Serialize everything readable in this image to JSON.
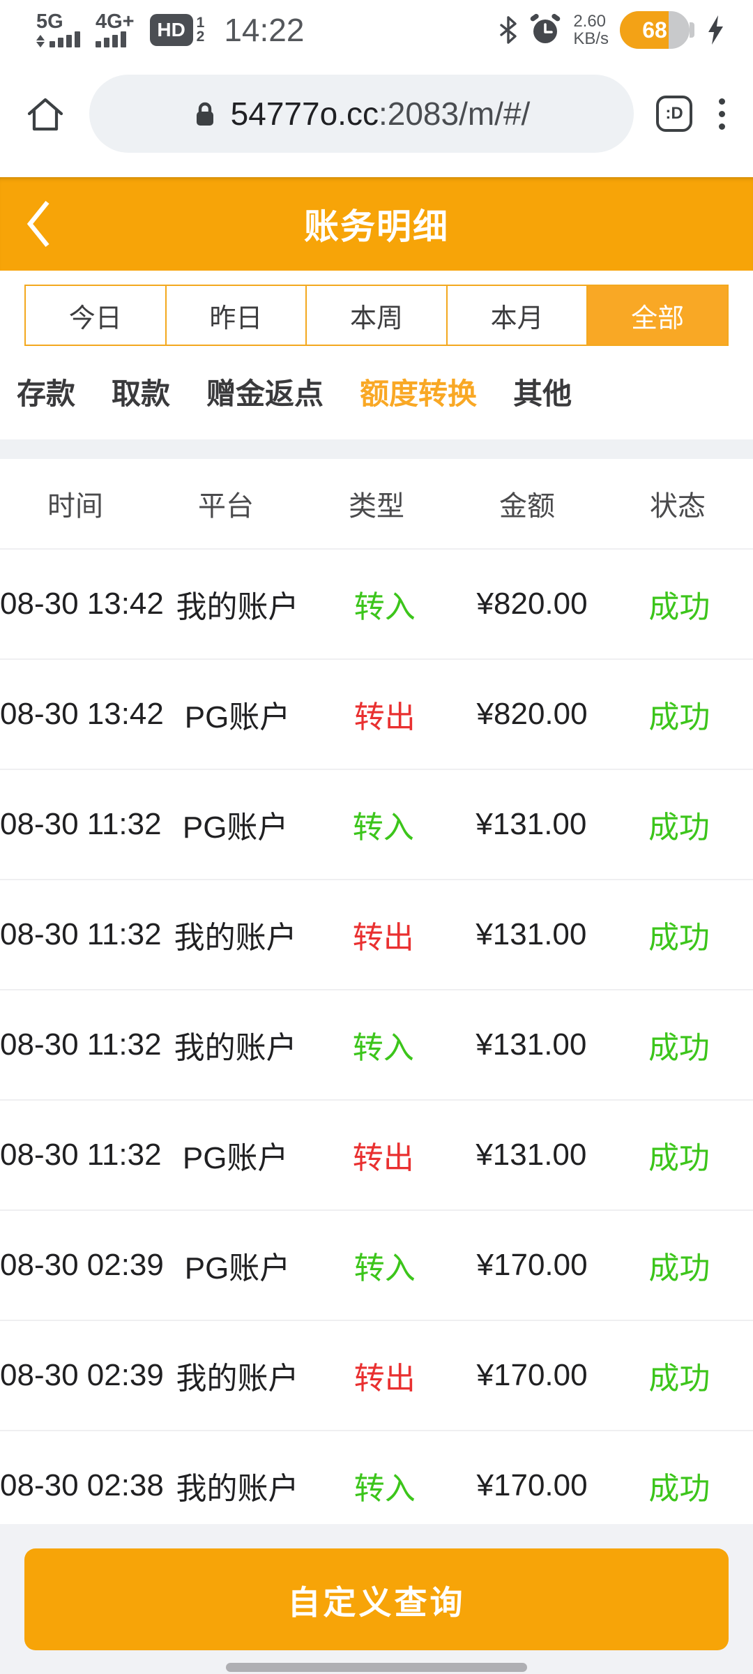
{
  "status_bar": {
    "network1": "5G",
    "network2": "4G+",
    "hd_label": "HD",
    "sim1": "1",
    "sim2": "2",
    "time": "14:22",
    "net_speed_value": "2.60",
    "net_speed_unit": "KB/s",
    "battery_level": "68"
  },
  "browser": {
    "url_host": "54777o.cc",
    "url_rest": ":2083/m/#/",
    "tab_count": ":D"
  },
  "header": {
    "title": "账务明细"
  },
  "range_tabs": {
    "items": [
      {
        "label": "今日",
        "selected": false
      },
      {
        "label": "昨日",
        "selected": false
      },
      {
        "label": "本周",
        "selected": false
      },
      {
        "label": "本月",
        "selected": false
      },
      {
        "label": "全部",
        "selected": true
      }
    ]
  },
  "type_tabs": {
    "items": [
      {
        "label": "存款",
        "selected": false
      },
      {
        "label": "取款",
        "selected": false
      },
      {
        "label": "赠金返点",
        "selected": false
      },
      {
        "label": "额度转换",
        "selected": true
      },
      {
        "label": "其他",
        "selected": false
      }
    ]
  },
  "table": {
    "columns": [
      "时间",
      "平台",
      "类型",
      "金额",
      "状态"
    ],
    "rows": [
      {
        "time": "08-30 13:42",
        "platform": "我的账户",
        "type": "转入",
        "type_color": "green",
        "amount": "¥820.00",
        "status": "成功"
      },
      {
        "time": "08-30 13:42",
        "platform": "PG账户",
        "type": "转出",
        "type_color": "red",
        "amount": "¥820.00",
        "status": "成功"
      },
      {
        "time": "08-30 11:32",
        "platform": "PG账户",
        "type": "转入",
        "type_color": "green",
        "amount": "¥131.00",
        "status": "成功"
      },
      {
        "time": "08-30 11:32",
        "platform": "我的账户",
        "type": "转出",
        "type_color": "red",
        "amount": "¥131.00",
        "status": "成功"
      },
      {
        "time": "08-30 11:32",
        "platform": "我的账户",
        "type": "转入",
        "type_color": "green",
        "amount": "¥131.00",
        "status": "成功"
      },
      {
        "time": "08-30 11:32",
        "platform": "PG账户",
        "type": "转出",
        "type_color": "red",
        "amount": "¥131.00",
        "status": "成功"
      },
      {
        "time": "08-30 02:39",
        "platform": "PG账户",
        "type": "转入",
        "type_color": "green",
        "amount": "¥170.00",
        "status": "成功"
      },
      {
        "time": "08-30 02:39",
        "platform": "我的账户",
        "type": "转出",
        "type_color": "red",
        "amount": "¥170.00",
        "status": "成功"
      },
      {
        "time": "08-30 02:38",
        "platform": "我的账户",
        "type": "转入",
        "type_color": "green",
        "amount": "¥170.00",
        "status": "成功"
      }
    ]
  },
  "footer": {
    "query_button": "自定义查询"
  },
  "colors": {
    "accent": "#F7A408",
    "tabSelected": "#F9A825",
    "borderOrange": "#F3A81E",
    "green": "#3CC51B",
    "red": "#E93030"
  },
  "icons": {
    "back": "chevron-left-icon",
    "home": "home-icon",
    "lock": "lock-icon",
    "tabs": "tab-counter-icon",
    "menu": "kebab-menu-icon",
    "bluetooth": "bluetooth-icon",
    "alarm": "alarm-clock-icon",
    "battery": "battery-icon",
    "charging": "lightning-icon",
    "signal": "signal-bars-icon"
  }
}
